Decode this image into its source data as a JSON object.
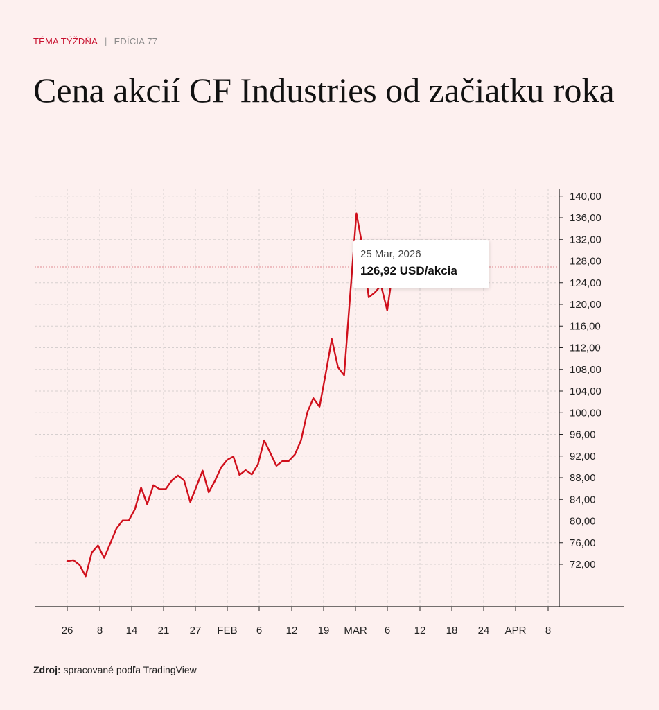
{
  "header": {
    "topic": "TÉMA TÝŽDŇA",
    "separator": "|",
    "edition": "EDÍCIA 77"
  },
  "title": "Cena akcií CF Industries od začiatku roka",
  "tooltip": {
    "date": "25 Mar, 2026",
    "value": "126,92 USD/akcia"
  },
  "source": {
    "label": "Zdroj:",
    "text": "spracované podľa TradingView"
  },
  "colors": {
    "line": "#d0101c",
    "background": "#fdf0ef",
    "grid": "#d6cfcf",
    "accent": "#c8102e"
  },
  "chart_data": {
    "type": "line",
    "title": "",
    "xlabel": "",
    "ylabel": "",
    "ylim": [
      63,
      142
    ],
    "y_ticks": [
      "140,00",
      "136,00",
      "132,00",
      "128,00",
      "124,00",
      "120,00",
      "116,00",
      "112,00",
      "108,00",
      "104,00",
      "100,00",
      "96,00",
      "92,00",
      "88,00",
      "84,00",
      "80,00",
      "76,00",
      "72,00"
    ],
    "y_tick_values": [
      140,
      136,
      132,
      128,
      124,
      120,
      116,
      112,
      108,
      104,
      100,
      96,
      92,
      88,
      84,
      80,
      76,
      72
    ],
    "x_tick_labels": [
      "26",
      "8",
      "14",
      "21",
      "27",
      "FEB",
      "6",
      "12",
      "19",
      "MAR",
      "6",
      "12",
      "18",
      "24",
      "APR",
      "8"
    ],
    "grid": true,
    "legend": "none",
    "hover_line_value": 126.92,
    "series": [
      {
        "values": [
          72.6,
          72.8,
          71.9,
          69.8,
          74.2,
          75.5,
          73.2,
          75.9,
          78.6,
          80.1,
          80.1,
          82.2,
          86.2,
          83.1,
          86.6,
          85.9,
          85.9,
          87.5,
          88.4,
          87.5,
          83.5,
          86.4,
          89.3,
          85.3,
          87.4,
          89.9,
          91.3,
          91.9,
          88.5,
          89.4,
          88.6,
          90.5,
          94.9,
          92.6,
          90.2,
          91.1,
          91.1,
          92.3,
          94.9,
          100.0,
          102.7,
          101.1,
          107.2,
          113.6,
          108.4,
          106.9,
          122.0,
          136.8,
          130.6,
          121.3,
          122.2,
          123.5,
          118.9,
          126.92
        ]
      }
    ]
  }
}
